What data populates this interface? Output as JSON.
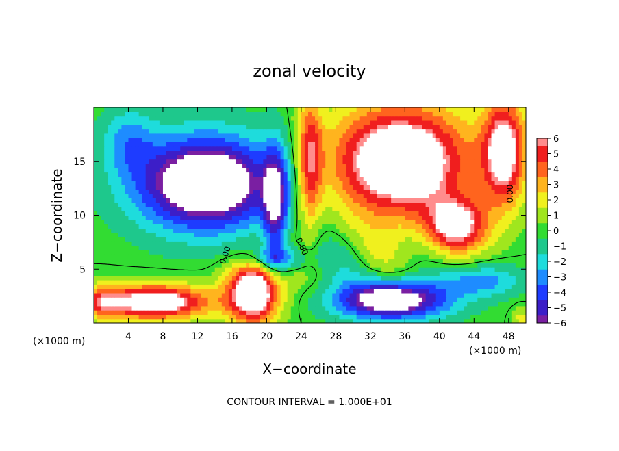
{
  "chart_data": {
    "type": "heatmap",
    "title": "zonal velocity",
    "xlabel": "X−coordinate",
    "ylabel": "Z−coordinate",
    "x_unit_left": "(×1000 m)",
    "x_unit_right": "(×1000 m)",
    "footer": "CONTOUR INTERVAL = 1.000E+01",
    "xlim": [
      0,
      50
    ],
    "ylim": [
      0,
      20
    ],
    "x_ticks": [
      4,
      8,
      12,
      16,
      20,
      24,
      28,
      32,
      36,
      40,
      44,
      48
    ],
    "y_ticks": [
      5,
      10,
      15
    ],
    "colorbar": {
      "range": [
        -6,
        6
      ],
      "ticks": [
        "6",
        "5",
        "4",
        "3",
        "2",
        "1",
        "0",
        "−1",
        "−2",
        "−3",
        "−4",
        "−5",
        "−6"
      ],
      "values": [
        6,
        5,
        4,
        3,
        2,
        1,
        0,
        -1,
        -2,
        -3,
        -4,
        -5,
        -6
      ]
    },
    "contour_labels": [
      {
        "text": "0.00",
        "x": 15.5,
        "y": 6.2,
        "angle": -70
      },
      {
        "text": "0.00",
        "x": 23.8,
        "y": 7.0,
        "angle": 65
      },
      {
        "text": "0.00",
        "x": 48.5,
        "y": 12.0,
        "angle": -90
      }
    ],
    "colors": {
      "positive_saturated": "#ffffff",
      "negative_saturated": "#ffffff",
      "palette": [
        "#7a1fa2",
        "#3c1ec8",
        "#1e3cff",
        "#1e8cff",
        "#1edcdc",
        "#1ec88c",
        "#32dc32",
        "#a0e61e",
        "#f0f01e",
        "#ffb41e",
        "#ff641e",
        "#f01e1e",
        "#ff8c8c"
      ]
    }
  }
}
